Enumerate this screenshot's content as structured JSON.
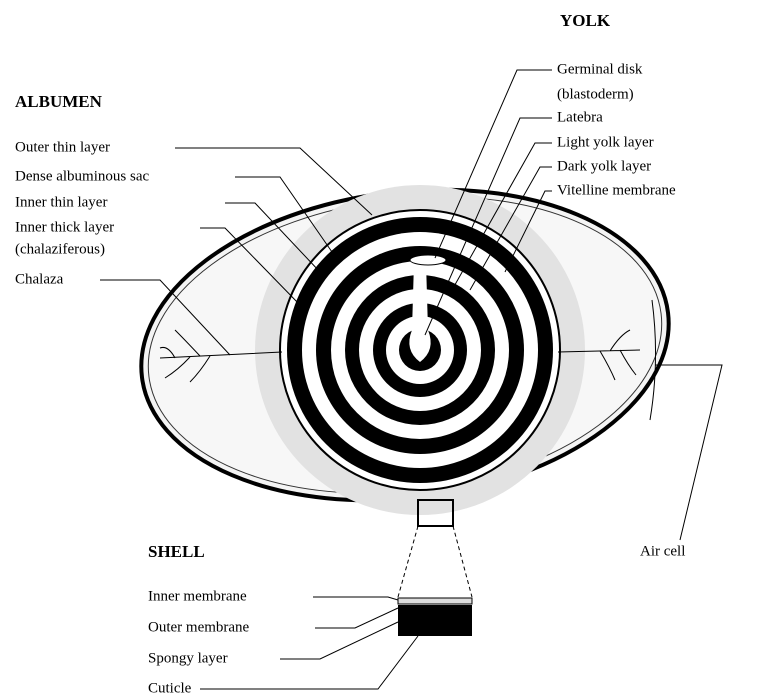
{
  "yolk": {
    "title": "YOLK",
    "labels": [
      {
        "lines": [
          "Germinal disk",
          "(blastoderm)"
        ]
      },
      {
        "lines": [
          "Latebra"
        ]
      },
      {
        "lines": [
          "Light yolk layer"
        ]
      },
      {
        "lines": [
          "Dark yolk layer"
        ]
      },
      {
        "lines": [
          "Vitelline membrane"
        ]
      }
    ]
  },
  "albumen": {
    "title": "ALBUMEN",
    "labels": [
      {
        "lines": [
          "Outer thin layer"
        ]
      },
      {
        "lines": [
          "Dense albuminous sac"
        ]
      },
      {
        "lines": [
          "Inner thin layer"
        ]
      },
      {
        "lines": [
          "Inner thick layer",
          "(chalaziferous)"
        ]
      },
      {
        "lines": [
          "Chalaza"
        ]
      }
    ]
  },
  "shell": {
    "title": "SHELL",
    "labels": [
      {
        "lines": [
          "Inner membrane"
        ]
      },
      {
        "lines": [
          "Outer membrane"
        ]
      },
      {
        "lines": [
          "Spongy layer"
        ]
      },
      {
        "lines": [
          "Cuticle"
        ]
      }
    ]
  },
  "air_cell": "Air cell"
}
